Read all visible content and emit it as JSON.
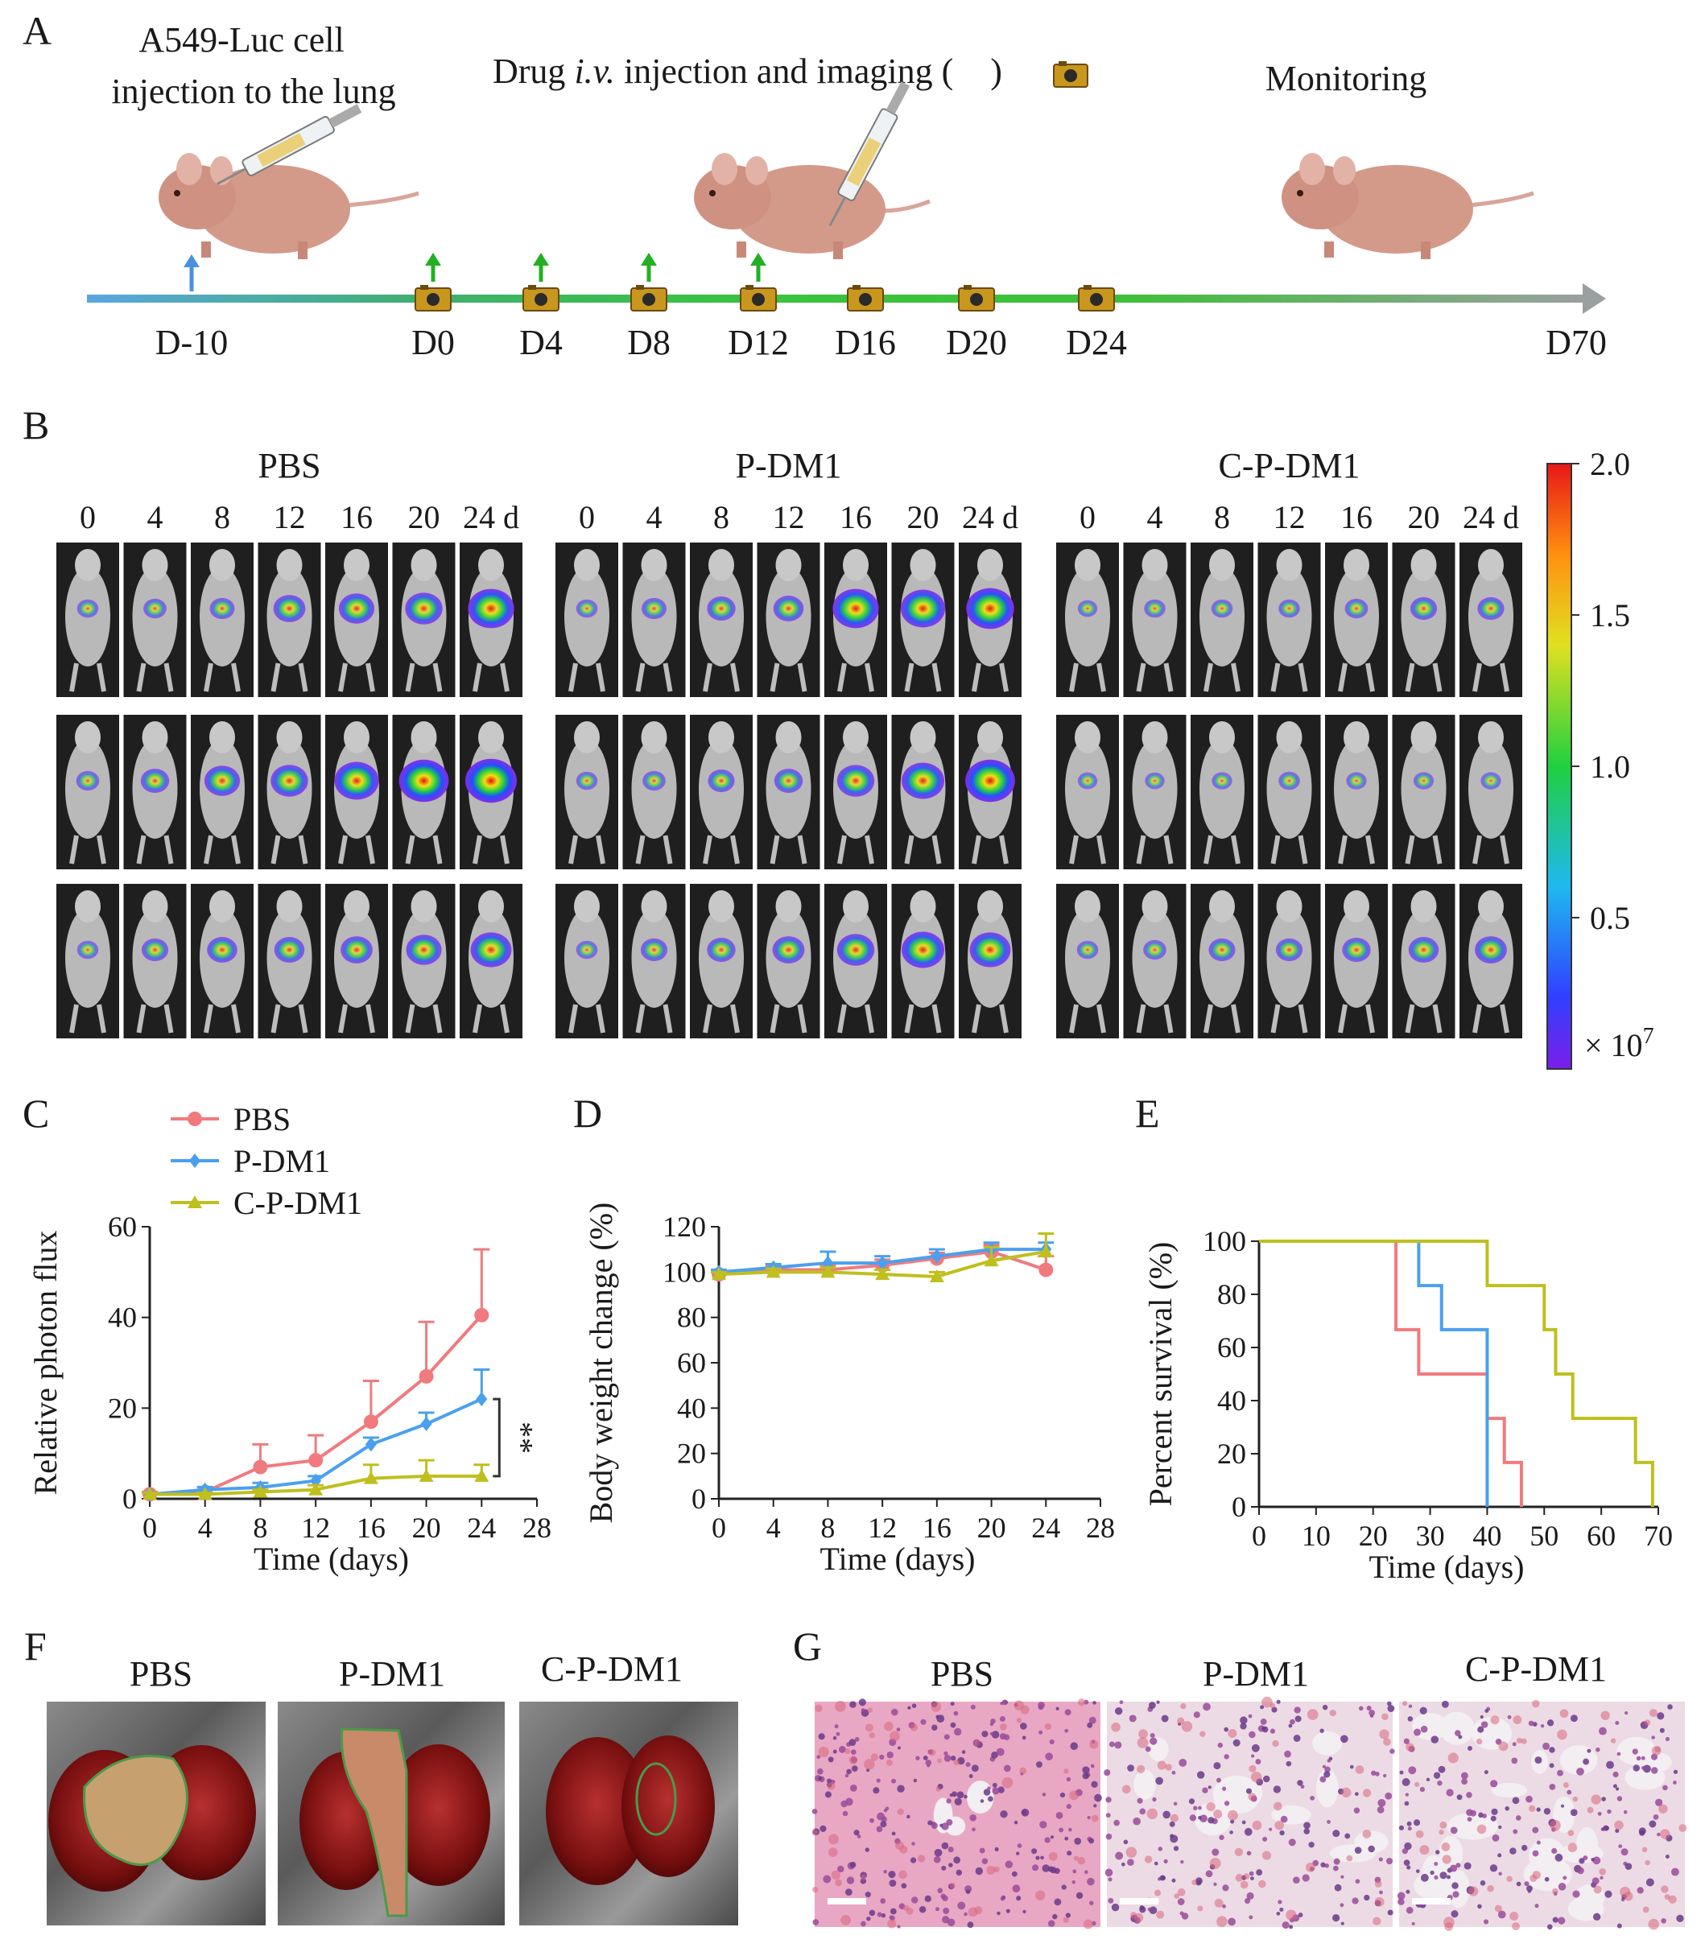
{
  "panels": {
    "A": {
      "letter": "A",
      "step1": [
        "A549-Luc cell",
        "injection to the lung"
      ],
      "step2": {
        "pre": "Drug ",
        "ital": "i.v.",
        "post": " injection and imaging (",
        "end": ")"
      },
      "step3": "Monitoring",
      "days": [
        "D-10",
        "D0",
        "D4",
        "D8",
        "D12",
        "D16",
        "D20",
        "D24",
        "D70"
      ],
      "injection_days": [
        "D0",
        "D4",
        "D8",
        "D12"
      ],
      "imaging_days": [
        "D0",
        "D4",
        "D8",
        "D12",
        "D16",
        "D20",
        "D24"
      ]
    },
    "B": {
      "letter": "B",
      "groups": [
        "PBS",
        "P-DM1",
        "C-P-DM1"
      ],
      "day_labels": [
        "0",
        "4",
        "8",
        "12",
        "16",
        "20",
        "24 d"
      ],
      "colorbar": {
        "ticks": [
          "2.0",
          "1.5",
          "1.0",
          "0.5"
        ],
        "unit": "× 10",
        "exp": "7"
      },
      "signal_intensity": {
        "PBS": [
          [
            0.15,
            0.2,
            0.25,
            0.45,
            0.55,
            0.6,
            0.85
          ],
          [
            0.2,
            0.35,
            0.55,
            0.6,
            0.8,
            0.95,
            1.0
          ],
          [
            0.15,
            0.3,
            0.4,
            0.4,
            0.45,
            0.55,
            0.7
          ]
        ],
        "P-DM1": [
          [
            0.15,
            0.25,
            0.35,
            0.4,
            0.85,
            0.8,
            0.9
          ],
          [
            0.15,
            0.2,
            0.3,
            0.35,
            0.6,
            0.75,
            0.95
          ],
          [
            0.15,
            0.3,
            0.35,
            0.45,
            0.6,
            0.75,
            0.7
          ]
        ],
        "C-P-DM1": [
          [
            0.1,
            0.15,
            0.15,
            0.15,
            0.2,
            0.3,
            0.3
          ],
          [
            0.1,
            0.1,
            0.12,
            0.15,
            0.12,
            0.12,
            0.12
          ],
          [
            0.15,
            0.2,
            0.3,
            0.3,
            0.35,
            0.4,
            0.45
          ]
        ]
      }
    },
    "C": {
      "letter": "C"
    },
    "D": {
      "letter": "D"
    },
    "E": {
      "letter": "E"
    },
    "F": {
      "letter": "F",
      "labels": [
        "PBS",
        "P-DM1",
        "C-P-DM1"
      ]
    },
    "G": {
      "letter": "G",
      "labels": [
        "PBS",
        "P-DM1",
        "C-P-DM1"
      ]
    }
  },
  "chart_data": [
    {
      "id": "C",
      "type": "line",
      "xlabel": "Time (days)",
      "ylabel": "Relative photon flux",
      "xlim": [
        0,
        28
      ],
      "ylim": [
        0,
        60
      ],
      "xticks": [
        "0",
        "4",
        "8",
        "12",
        "16",
        "20",
        "24",
        "28"
      ],
      "yticks": [
        "0",
        "20",
        "40",
        "60"
      ],
      "x": [
        0,
        4,
        8,
        12,
        16,
        20,
        24
      ],
      "series": [
        {
          "name": "PBS",
          "color": "#f07a7e",
          "values": [
            1,
            1.5,
            7,
            8.5,
            17,
            27,
            40.5
          ],
          "errors": [
            0.5,
            0.5,
            5,
            5.5,
            9,
            12,
            14.5
          ]
        },
        {
          "name": "P-DM1",
          "color": "#4aa0ee",
          "values": [
            1,
            2,
            2.5,
            4,
            12,
            16.5,
            22
          ],
          "errors": [
            0.3,
            0.6,
            1,
            1,
            1.5,
            2.5,
            6.5
          ]
        },
        {
          "name": "C-P-DM1",
          "color": "#bfbf1e",
          "values": [
            1,
            1,
            1.5,
            2,
            4.5,
            5,
            5
          ],
          "errors": [
            0.3,
            0.3,
            0.5,
            1,
            3,
            3.5,
            2.5
          ]
        }
      ],
      "annotation": "**",
      "legend": "top-left"
    },
    {
      "id": "D",
      "type": "line",
      "xlabel": "Time (days)",
      "ylabel": "Body weight change (%)",
      "xlim": [
        0,
        28
      ],
      "ylim": [
        0,
        120
      ],
      "xticks": [
        "0",
        "4",
        "8",
        "12",
        "16",
        "20",
        "24",
        "28"
      ],
      "yticks": [
        "0",
        "20",
        "40",
        "60",
        "80",
        "100",
        "120"
      ],
      "x": [
        0,
        4,
        8,
        12,
        16,
        20,
        24
      ],
      "series": [
        {
          "name": "PBS",
          "color": "#f07a7e",
          "values": [
            99,
            101,
            101,
            103,
            106,
            109,
            101
          ],
          "errors": [
            1,
            1.5,
            2,
            2.5,
            2.5,
            3,
            6
          ]
        },
        {
          "name": "P-DM1",
          "color": "#4aa0ee",
          "values": [
            100,
            102,
            104,
            104,
            107,
            110,
            110
          ],
          "errors": [
            1,
            1.5,
            5,
            3,
            3,
            3,
            3
          ]
        },
        {
          "name": "C-P-DM1",
          "color": "#bfbf1e",
          "values": [
            99,
            100,
            100,
            99,
            98,
            105,
            109
          ],
          "errors": [
            1,
            1.5,
            2,
            2,
            2,
            6,
            8
          ]
        }
      ]
    },
    {
      "id": "E",
      "type": "line",
      "subtype": "step",
      "xlabel": "Time (days)",
      "ylabel": "Percent survival (%)",
      "xlim": [
        0,
        70
      ],
      "ylim": [
        0,
        100
      ],
      "xticks": [
        "0",
        "10",
        "20",
        "30",
        "40",
        "50",
        "60",
        "70"
      ],
      "yticks": [
        "0",
        "20",
        "40",
        "60",
        "80",
        "100"
      ],
      "series": [
        {
          "name": "PBS",
          "color": "#f07a7e",
          "times": [
            0,
            24,
            28,
            40,
            43,
            46
          ],
          "values": [
            100,
            66.7,
            50,
            33.3,
            16.7,
            0
          ]
        },
        {
          "name": "P-DM1",
          "color": "#4aa0ee",
          "times": [
            0,
            28,
            32,
            40
          ],
          "values": [
            100,
            83.3,
            66.7,
            0
          ]
        },
        {
          "name": "C-P-DM1",
          "color": "#bfbf1e",
          "times": [
            0,
            40,
            50,
            52,
            55,
            66,
            69
          ],
          "values": [
            100,
            83.3,
            66.7,
            50,
            33.3,
            16.7,
            0
          ]
        }
      ]
    }
  ]
}
